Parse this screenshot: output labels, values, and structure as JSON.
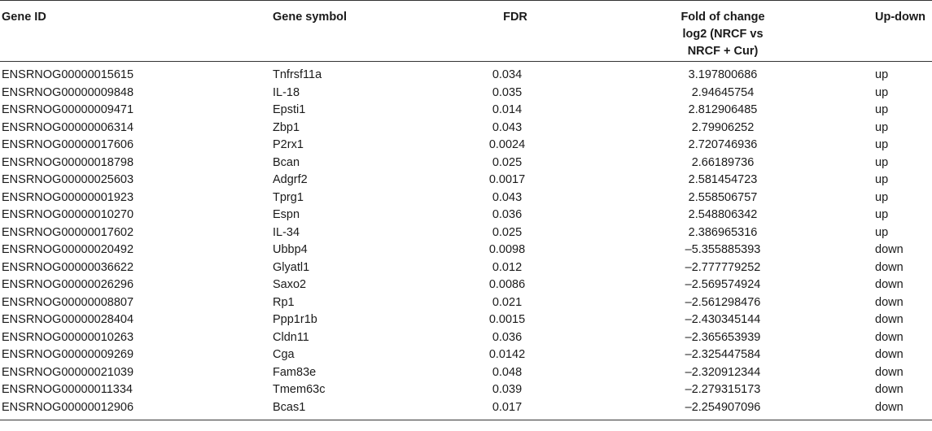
{
  "table": {
    "headers": {
      "gene_id": "Gene ID",
      "gene_symbol": "Gene symbol",
      "fdr": "FDR",
      "fold_line1": "Fold of change",
      "fold_line2": "log2 (NRCF vs",
      "fold_line3": "NRCF + Cur)",
      "up_down": "Up-down"
    },
    "rows": [
      {
        "gene_id": "ENSRNOG00000015615",
        "gene_symbol": "Tnfrsf11a",
        "fdr": "0.034",
        "fold": "3.197800686",
        "up_down": "up"
      },
      {
        "gene_id": "ENSRNOG00000009848",
        "gene_symbol": "IL-18",
        "fdr": "0.035",
        "fold": "2.94645754",
        "up_down": "up"
      },
      {
        "gene_id": "ENSRNOG00000009471",
        "gene_symbol": "Epsti1",
        "fdr": "0.014",
        "fold": "2.812906485",
        "up_down": "up"
      },
      {
        "gene_id": "ENSRNOG00000006314",
        "gene_symbol": "Zbp1",
        "fdr": "0.043",
        "fold": "2.79906252",
        "up_down": "up"
      },
      {
        "gene_id": "ENSRNOG00000017606",
        "gene_symbol": "P2rx1",
        "fdr": "0.0024",
        "fold": "2.720746936",
        "up_down": "up"
      },
      {
        "gene_id": "ENSRNOG00000018798",
        "gene_symbol": "Bcan",
        "fdr": "0.025",
        "fold": "2.66189736",
        "up_down": "up"
      },
      {
        "gene_id": "ENSRNOG00000025603",
        "gene_symbol": "Adgrf2",
        "fdr": "0.0017",
        "fold": "2.581454723",
        "up_down": "up"
      },
      {
        "gene_id": "ENSRNOG00000001923",
        "gene_symbol": "Tprg1",
        "fdr": "0.043",
        "fold": "2.558506757",
        "up_down": "up"
      },
      {
        "gene_id": "ENSRNOG00000010270",
        "gene_symbol": "Espn",
        "fdr": "0.036",
        "fold": "2.548806342",
        "up_down": "up"
      },
      {
        "gene_id": "ENSRNOG00000017602",
        "gene_symbol": "IL-34",
        "fdr": "0.025",
        "fold": "2.386965316",
        "up_down": "up"
      },
      {
        "gene_id": "ENSRNOG00000020492",
        "gene_symbol": "Ubbp4",
        "fdr": "0.0098",
        "fold": "–5.355885393",
        "up_down": "down"
      },
      {
        "gene_id": "ENSRNOG00000036622",
        "gene_symbol": "Glyatl1",
        "fdr": "0.012",
        "fold": "–2.777779252",
        "up_down": "down"
      },
      {
        "gene_id": "ENSRNOG00000026296",
        "gene_symbol": "Saxo2",
        "fdr": "0.0086",
        "fold": "–2.569574924",
        "up_down": "down"
      },
      {
        "gene_id": "ENSRNOG00000008807",
        "gene_symbol": "Rp1",
        "fdr": "0.021",
        "fold": "–2.561298476",
        "up_down": "down"
      },
      {
        "gene_id": "ENSRNOG00000028404",
        "gene_symbol": "Ppp1r1b",
        "fdr": "0.0015",
        "fold": "–2.430345144",
        "up_down": "down"
      },
      {
        "gene_id": "ENSRNOG00000010263",
        "gene_symbol": "Cldn11",
        "fdr": "0.036",
        "fold": "–2.365653939",
        "up_down": "down"
      },
      {
        "gene_id": "ENSRNOG00000009269",
        "gene_symbol": "Cga",
        "fdr": "0.0142",
        "fold": "–2.325447584",
        "up_down": "down"
      },
      {
        "gene_id": "ENSRNOG00000021039",
        "gene_symbol": "Fam83e",
        "fdr": "0.048",
        "fold": "–2.320912344",
        "up_down": "down"
      },
      {
        "gene_id": "ENSRNOG00000011334",
        "gene_symbol": "Tmem63c",
        "fdr": "0.039",
        "fold": "–2.279315173",
        "up_down": "down"
      },
      {
        "gene_id": "ENSRNOG00000012906",
        "gene_symbol": "Bcas1",
        "fdr": "0.017",
        "fold": "–2.254907096",
        "up_down": "down"
      }
    ]
  }
}
